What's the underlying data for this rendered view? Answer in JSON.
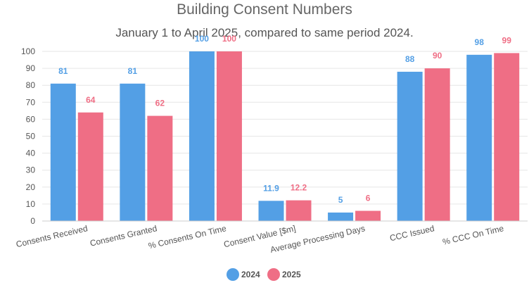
{
  "chart_data": {
    "type": "bar",
    "title": "Building Consent Numbers",
    "subtitle": "January 1 to April 2025, compared to same period 2024.",
    "categories": [
      "Consents Received",
      "Consents Granted",
      "% Consents On Time",
      "Consent Value [$m]",
      "Average Processing Days",
      "CCC Issued",
      "% CCC On Time"
    ],
    "series": [
      {
        "name": "2024",
        "color": "#539fe5",
        "values": [
          81,
          81,
          100,
          11.9,
          5,
          88,
          98
        ]
      },
      {
        "name": "2025",
        "color": "#ef6e85",
        "values": [
          64,
          62,
          100,
          12.2,
          6,
          90,
          99
        ]
      }
    ],
    "ylim": [
      0,
      100
    ],
    "yticks": [
      0,
      10,
      20,
      30,
      40,
      50,
      60,
      70,
      80,
      90,
      100
    ],
    "grid": true,
    "legend": "bottom",
    "xlabel": "",
    "ylabel": ""
  }
}
